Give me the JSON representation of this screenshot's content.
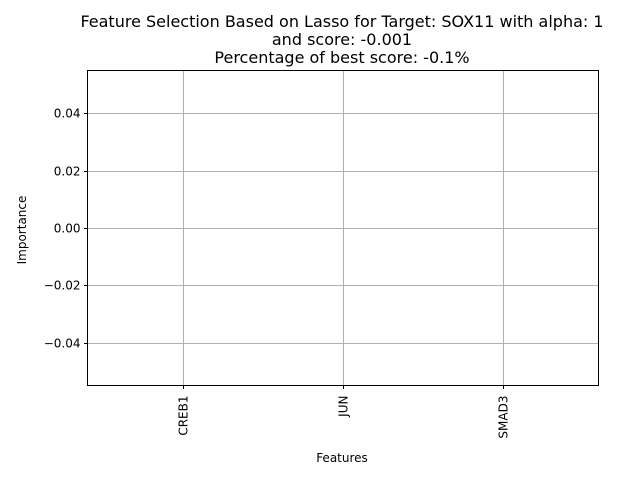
{
  "chart_data": {
    "type": "bar",
    "title_lines": [
      "Feature Selection Based on Lasso for Target: SOX11 with alpha: 1",
      "and score: -0.001",
      "Percentage of best score: -0.1%"
    ],
    "categories": [
      "CREB1",
      "JUN",
      "SMAD3"
    ],
    "values": [
      0,
      0,
      0
    ],
    "xlabel": "Features",
    "ylabel": "Importance",
    "ylim": [
      -0.055,
      0.055
    ],
    "yticks": [
      -0.04,
      -0.02,
      0.0,
      0.02,
      0.04
    ],
    "ytick_labels": [
      "−0.04",
      "−0.02",
      "0.00",
      "0.02",
      "0.04"
    ],
    "grid": true,
    "bar_color": "#1f77b4",
    "grid_color": "#b0b0b0"
  }
}
